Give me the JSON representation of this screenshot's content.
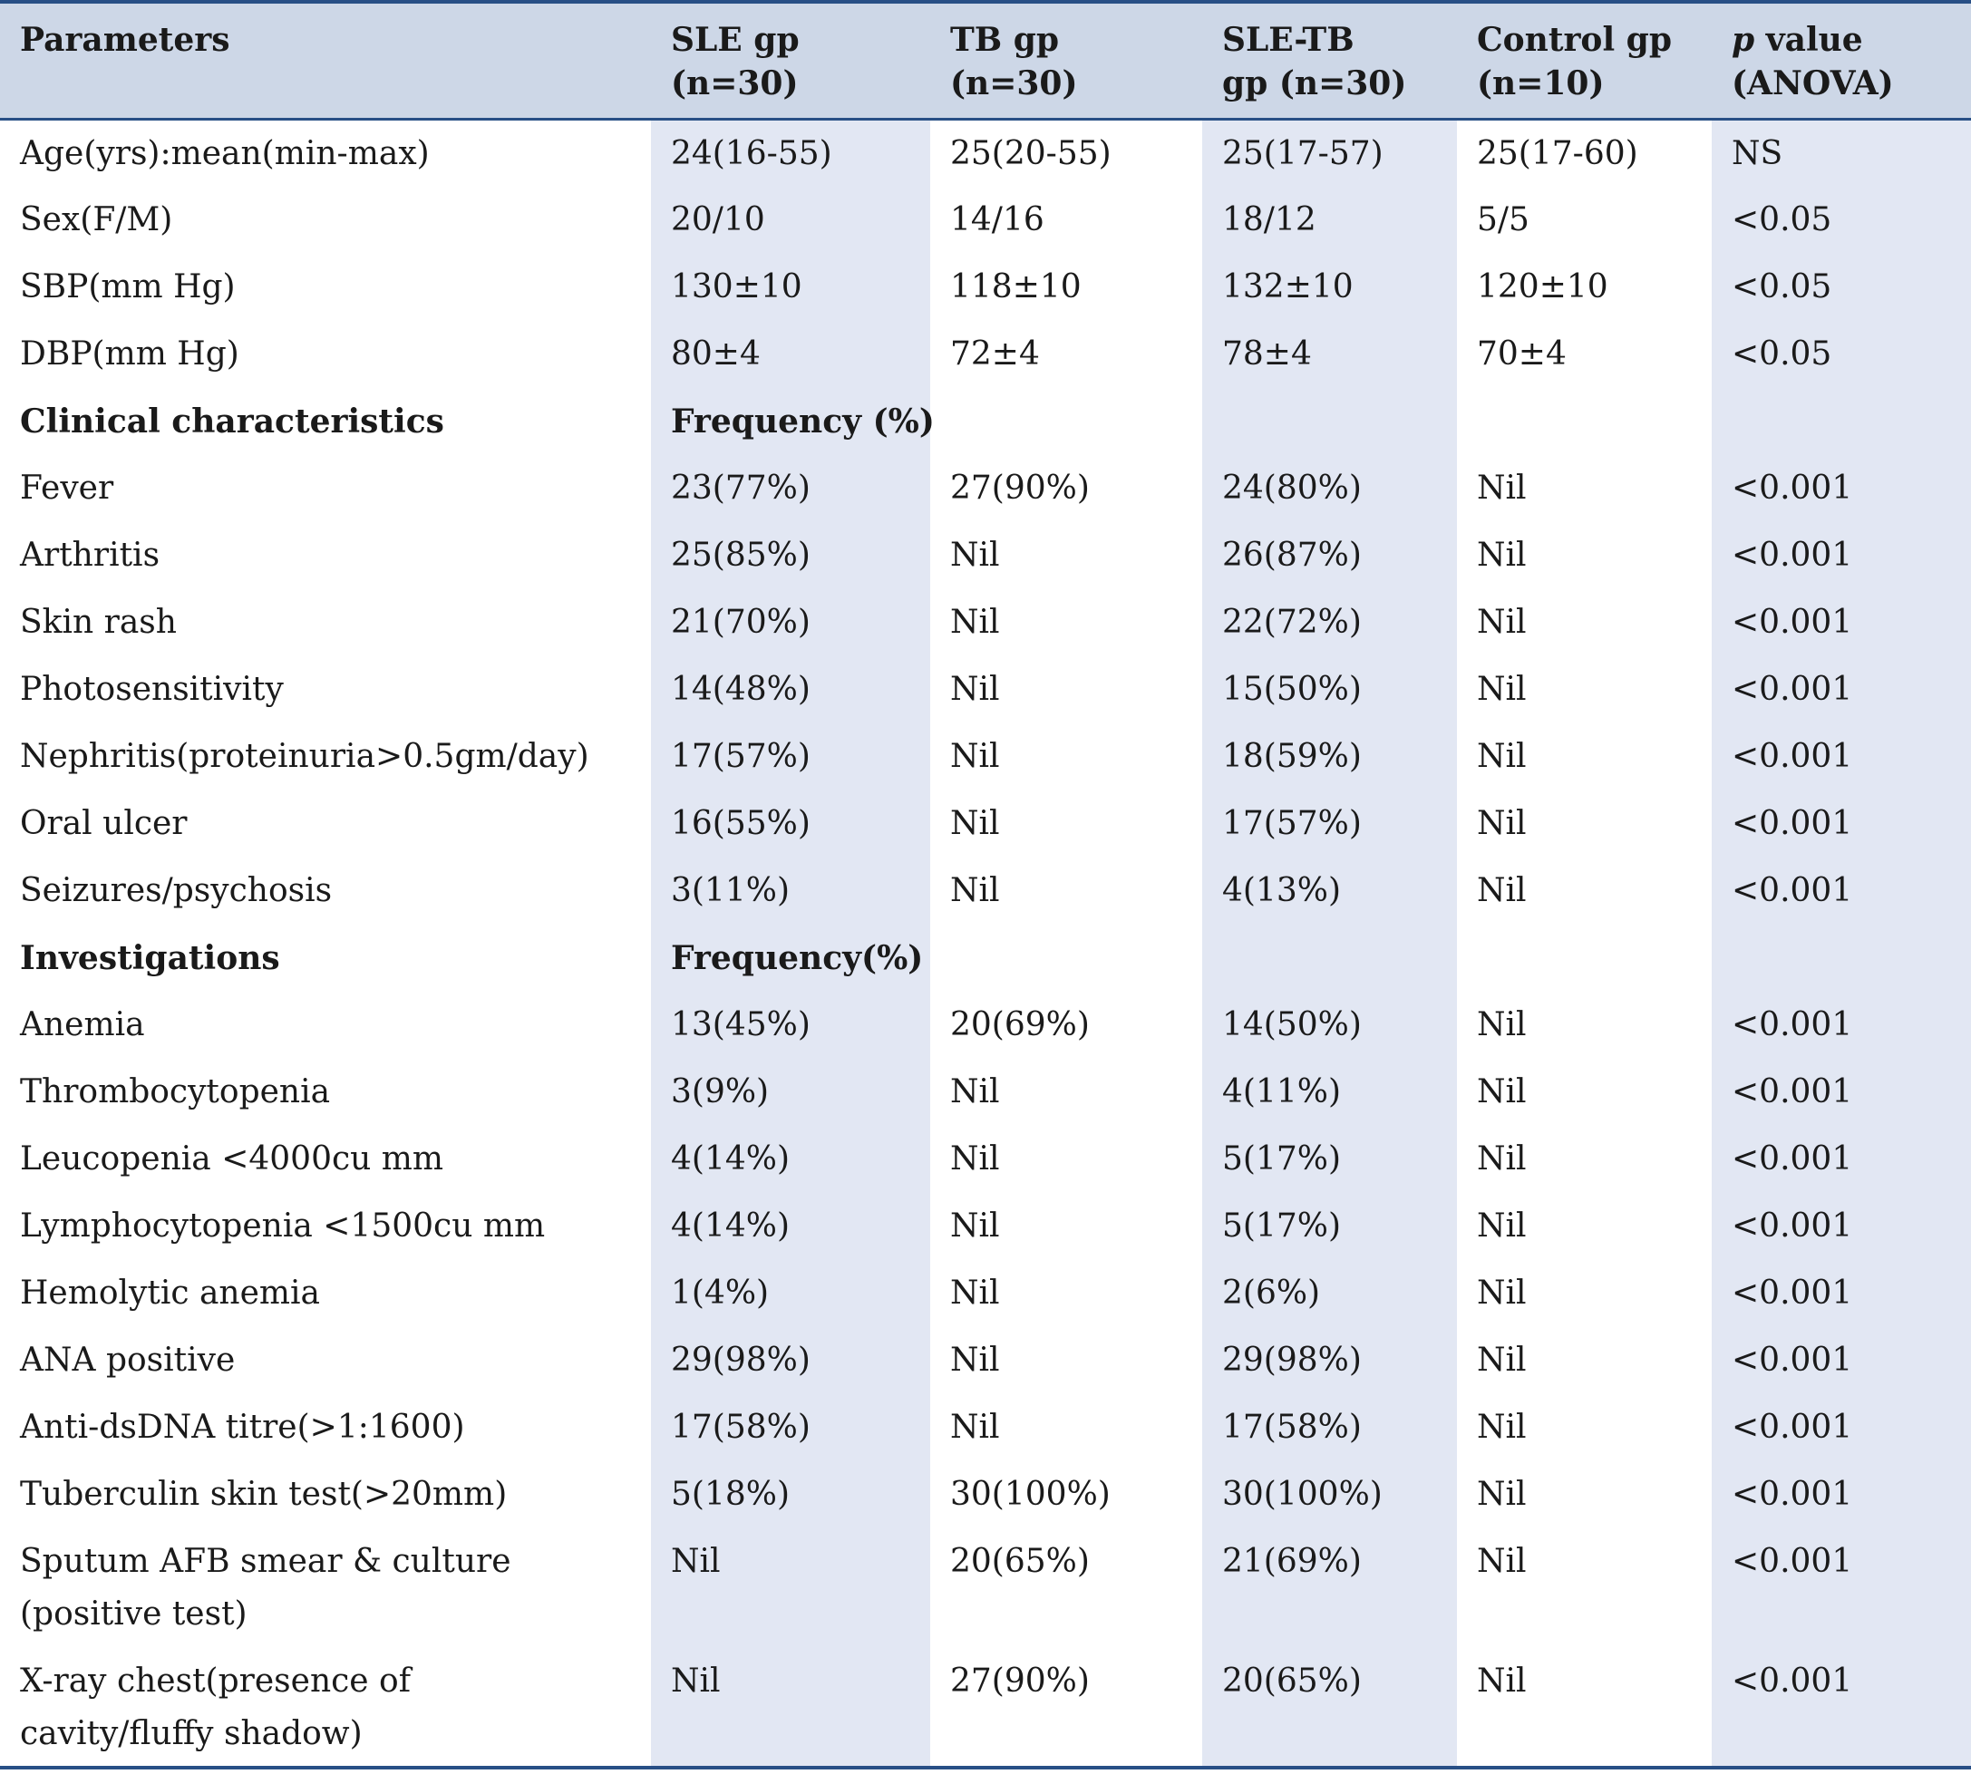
{
  "header": {
    "col0": "Parameters",
    "col1": "SLE gp (n=30)",
    "col2": "TB gp (n=30)",
    "col3_line1": "SLE-TB",
    "col3_line2": "gp (n=30)",
    "col4_line1": "Control gp",
    "col4_line2": "(n=10)",
    "col5_italic": "p",
    "col5_line1": " value",
    "col5_line2": "(ANOVA)"
  },
  "rows": [
    {
      "label": "Age(yrs):mean(min-max)",
      "sle": "24(16-55)",
      "tb": "25(20-55)",
      "sletb": "25(17-57)",
      "control": "25(17-60)",
      "p": "NS"
    },
    {
      "label": "Sex(F/M)",
      "sle": "20/10",
      "tb": "14/16",
      "sletb": "18/12",
      "control": "5/5",
      "p": "<0.05"
    },
    {
      "label": "SBP(mm Hg)",
      "sle": "130±10",
      "tb": "118±10",
      "sletb": "132±10",
      "control": "120±10",
      "p": "<0.05"
    },
    {
      "label": "DBP(mm Hg)",
      "sle": "80±4",
      "tb": "72±4",
      "sletb": "78±4",
      "control": "70±4",
      "p": "<0.05"
    },
    {
      "label": "Clinical characteristics",
      "sle": "Frequency (%)",
      "tb": "",
      "sletb": "",
      "control": "",
      "p": ""
    },
    {
      "label": "Fever",
      "sle": "23(77%)",
      "tb": "27(90%)",
      "sletb": "24(80%)",
      "control": "Nil",
      "p": "<0.001"
    },
    {
      "label": "Arthritis",
      "sle": "25(85%)",
      "tb": "Nil",
      "sletb": "26(87%)",
      "control": "Nil",
      "p": "<0.001"
    },
    {
      "label": "Skin rash",
      "sle": "21(70%)",
      "tb": "Nil",
      "sletb": "22(72%)",
      "control": "Nil",
      "p": "<0.001"
    },
    {
      "label": "Photosensitivity",
      "sle": "14(48%)",
      "tb": "Nil",
      "sletb": "15(50%)",
      "control": "Nil",
      "p": "<0.001"
    },
    {
      "label": "Nephritis(proteinuria>0.5gm/day)",
      "sle": "17(57%)",
      "tb": "Nil",
      "sletb": "18(59%)",
      "control": "Nil",
      "p": "<0.001"
    },
    {
      "label": "Oral ulcer",
      "sle": "16(55%)",
      "tb": "Nil",
      "sletb": "17(57%)",
      "control": "Nil",
      "p": "<0.001"
    },
    {
      "label": "Seizures/psychosis",
      "sle": "3(11%)",
      "tb": "Nil",
      "sletb": "4(13%)",
      "control": "Nil",
      "p": "<0.001"
    },
    {
      "label": "Investigations",
      "sle": "Frequency(%)",
      "tb": "",
      "sletb": "",
      "control": "",
      "p": ""
    },
    {
      "label": "Anemia",
      "sle": "13(45%)",
      "tb": "20(69%)",
      "sletb": "14(50%)",
      "control": "Nil",
      "p": "<0.001"
    },
    {
      "label": "Thrombocytopenia",
      "sle": "3(9%)",
      "tb": "Nil",
      "sletb": "4(11%)",
      "control": "Nil",
      "p": "<0.001"
    },
    {
      "label": "Leucopenia <4000cu mm",
      "sle": "4(14%)",
      "tb": "Nil",
      "sletb": "5(17%)",
      "control": "Nil",
      "p": "<0.001"
    },
    {
      "label": "Lymphocytopenia <1500cu mm",
      "sle": "4(14%)",
      "tb": "Nil",
      "sletb": "5(17%)",
      "control": "Nil",
      "p": "<0.001"
    },
    {
      "label": "Hemolytic anemia",
      "sle": "1(4%)",
      "tb": "Nil",
      "sletb": "2(6%)",
      "control": "Nil",
      "p": "<0.001"
    },
    {
      "label": "ANA positive",
      "sle": "29(98%)",
      "tb": "Nil",
      "sletb": "29(98%)",
      "control": "Nil",
      "p": "<0.001"
    },
    {
      "label": "Anti-dsDNA titre(>1:1600)",
      "sle": "17(58%)",
      "tb": "Nil",
      "sletb": "17(58%)",
      "control": "Nil",
      "p": "<0.001"
    },
    {
      "label": "Tuberculin skin test(>20mm)",
      "sle": "5(18%)",
      "tb": "30(100%)",
      "sletb": "30(100%)",
      "control": "Nil",
      "p": "<0.001"
    },
    {
      "label_line1": "Sputum AFB smear & culture",
      "label_line2": "(positive test)",
      "sle": "Nil",
      "tb": "20(65%)",
      "sletb": "21(69%)",
      "control": "Nil",
      "p": "<0.001"
    },
    {
      "label_line1": "X-ray chest(presence of",
      "label_line2": "cavity/fluffy shadow)",
      "sle": "Nil",
      "tb": "27(90%)",
      "sletb": "20(65%)",
      "control": "Nil",
      "p": "<0.001"
    }
  ]
}
